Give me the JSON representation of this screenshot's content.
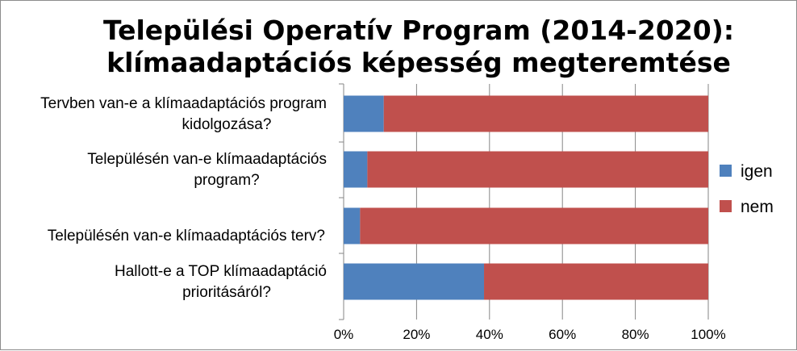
{
  "chart_data": {
    "type": "bar",
    "orientation": "horizontal",
    "stacked": "percent",
    "title": [
      "Települési Operatív Program (2014-2020):",
      "klímaadaptációs képesség megteremtése"
    ],
    "categories": [
      [
        "Tervben van-e a klímaadaptációs program",
        "kidolgozása?"
      ],
      [
        "Településén van-e klímaadaptációs",
        "program?"
      ],
      [
        "Településén van-e klímaadaptációs terv?"
      ],
      [
        "Hallott-e a TOP klímaadaptáció",
        "prioritásáról?"
      ]
    ],
    "series": [
      {
        "name": "igen",
        "color": "#4f81bd",
        "values": [
          11,
          6.5,
          4.5,
          38.5
        ]
      },
      {
        "name": "nem",
        "color": "#c0504d",
        "values": [
          89,
          93.5,
          95.5,
          61.5
        ]
      }
    ],
    "xlim": [
      0,
      100
    ],
    "xticks": [
      "0%",
      "20%",
      "40%",
      "60%",
      "80%",
      "100%"
    ],
    "grid": true,
    "legend": "right"
  }
}
